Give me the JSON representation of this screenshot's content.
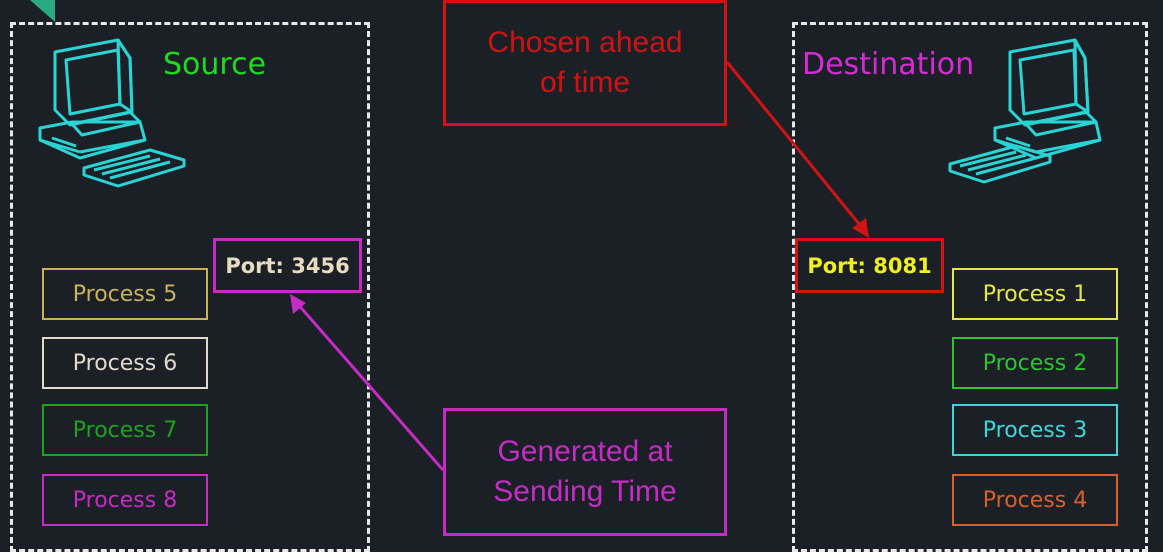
{
  "source": {
    "title": "Source",
    "port_label": "Port: 3456",
    "processes": [
      {
        "label": "Process 5",
        "color": "#c9b25a"
      },
      {
        "label": "Process 6",
        "color": "#e0dccc"
      },
      {
        "label": "Process 7",
        "color": "#1ea21e"
      },
      {
        "label": "Process 8",
        "color": "#c42cc4"
      }
    ]
  },
  "destination": {
    "title": "Destination",
    "port_label": "Port: 8081",
    "processes": [
      {
        "label": "Process 1",
        "color": "#e6e64a"
      },
      {
        "label": "Process 2",
        "color": "#2ec42e"
      },
      {
        "label": "Process 3",
        "color": "#3ed6d6"
      },
      {
        "label": "Process 4",
        "color": "#d8602a"
      }
    ]
  },
  "callouts": {
    "top": {
      "line1": "Chosen ahead",
      "line2": "of time"
    },
    "bottom": {
      "line1": "Generated at",
      "line2": "Sending Time"
    }
  },
  "colors": {
    "background": "#1b1f26",
    "source_title": "#21d921",
    "destination_title": "#d62ad6",
    "red": "#d01414",
    "magenta": "#c42cc4",
    "computer": "#2ad4d4",
    "source_port_text": "#e8dcc0",
    "dest_port_text": "#f0f020",
    "corner_marker": "#2aaa80"
  },
  "icons": {
    "source_computer": "desktop-computer-icon",
    "destination_computer": "desktop-computer-icon"
  }
}
